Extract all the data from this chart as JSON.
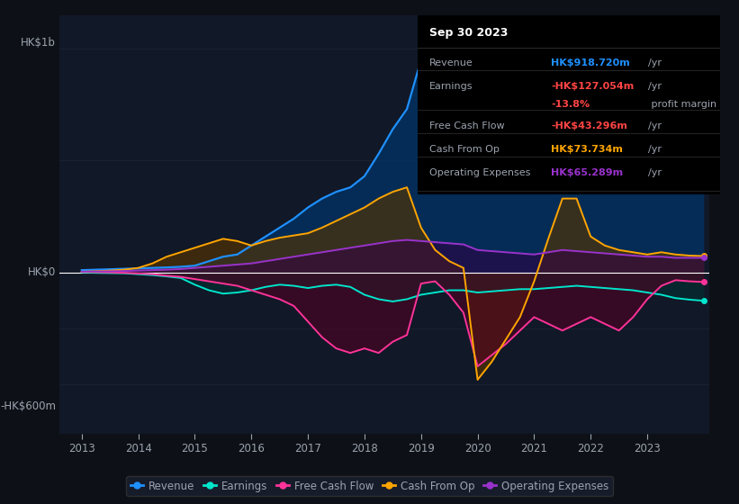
{
  "background_color": "#0d1117",
  "plot_bg_color": "#111827",
  "grid_color": "#1e2535",
  "text_color": "#9ca3af",
  "ylabel_top": "HK$1b",
  "ylabel_bottom": "-HK$600m",
  "ylabel_zero": "HK$0",
  "xlim": [
    2012.6,
    2024.1
  ],
  "ylim": [
    -720,
    1150
  ],
  "xticks": [
    2013,
    2014,
    2015,
    2016,
    2017,
    2018,
    2019,
    2020,
    2021,
    2022,
    2023
  ],
  "years": [
    2013.0,
    2013.25,
    2013.5,
    2013.75,
    2014.0,
    2014.25,
    2014.5,
    2014.75,
    2015.0,
    2015.25,
    2015.5,
    2015.75,
    2016.0,
    2016.25,
    2016.5,
    2016.75,
    2017.0,
    2017.25,
    2017.5,
    2017.75,
    2018.0,
    2018.25,
    2018.5,
    2018.75,
    2019.0,
    2019.25,
    2019.5,
    2019.75,
    2020.0,
    2020.25,
    2020.5,
    2020.75,
    2021.0,
    2021.25,
    2021.5,
    2021.75,
    2022.0,
    2022.25,
    2022.5,
    2022.75,
    2023.0,
    2023.25,
    2023.5,
    2023.75,
    2024.0
  ],
  "revenue": [
    10,
    12,
    14,
    16,
    18,
    20,
    22,
    25,
    30,
    50,
    70,
    80,
    120,
    160,
    200,
    240,
    290,
    330,
    360,
    380,
    430,
    530,
    640,
    730,
    950,
    780,
    600,
    490,
    490,
    480,
    500,
    510,
    560,
    570,
    620,
    600,
    510,
    480,
    460,
    490,
    530,
    720,
    830,
    880,
    919
  ],
  "earnings": [
    0,
    -2,
    -3,
    -4,
    -8,
    -12,
    -18,
    -25,
    -55,
    -80,
    -95,
    -90,
    -80,
    -65,
    -55,
    -60,
    -70,
    -60,
    -55,
    -65,
    -100,
    -120,
    -130,
    -120,
    -100,
    -90,
    -80,
    -80,
    -90,
    -85,
    -80,
    -75,
    -75,
    -70,
    -65,
    -60,
    -65,
    -70,
    -75,
    -80,
    -90,
    -100,
    -115,
    -122,
    -127
  ],
  "free_cash_flow": [
    2,
    1,
    0,
    -2,
    -5,
    -8,
    -15,
    -20,
    -30,
    -40,
    -50,
    -60,
    -80,
    -100,
    -120,
    -150,
    -220,
    -290,
    -340,
    -360,
    -340,
    -360,
    -310,
    -280,
    -50,
    -40,
    -100,
    -180,
    -420,
    -370,
    -320,
    -260,
    -200,
    -230,
    -260,
    -230,
    -200,
    -230,
    -260,
    -200,
    -120,
    -60,
    -35,
    -40,
    -43
  ],
  "cash_from_op": [
    3,
    5,
    8,
    12,
    20,
    40,
    70,
    90,
    110,
    130,
    150,
    140,
    120,
    140,
    155,
    165,
    175,
    200,
    230,
    260,
    290,
    330,
    360,
    380,
    200,
    100,
    50,
    20,
    -480,
    -400,
    -300,
    -200,
    -40,
    150,
    330,
    330,
    160,
    120,
    100,
    90,
    80,
    90,
    80,
    75,
    73
  ],
  "operating_expenses": [
    3,
    4,
    5,
    6,
    8,
    10,
    12,
    15,
    20,
    25,
    30,
    35,
    40,
    50,
    60,
    70,
    80,
    90,
    100,
    110,
    120,
    130,
    140,
    145,
    140,
    135,
    130,
    125,
    100,
    95,
    90,
    85,
    80,
    90,
    100,
    95,
    90,
    85,
    80,
    75,
    70,
    70,
    65,
    65,
    65
  ],
  "revenue_color": "#1e90ff",
  "earnings_color": "#00e5cc",
  "free_cash_flow_color": "#ff3399",
  "cash_from_op_color": "#ffa500",
  "operating_expenses_color": "#9932cc",
  "revenue_fill": "#003366",
  "earnings_fill": "#003333",
  "free_cash_flow_fill": "#550022",
  "cash_from_op_fill": "#553300",
  "operating_expenses_fill": "#330044",
  "info_box": {
    "title": "Sep 30 2023",
    "title_color": "#ffffff",
    "bg_color": "#000000",
    "border_color": "#333333",
    "label_color": "#9ca3af",
    "value_color_default": "#ffffff",
    "rows": [
      {
        "label": "Revenue",
        "value": "HK$918.720m",
        "unit": "/yr",
        "value_color": "#1e90ff"
      },
      {
        "label": "Earnings",
        "value": "-HK$127.054m",
        "unit": "/yr",
        "value_color": "#ff4444"
      },
      {
        "label": "",
        "value": "-13.8%",
        "unit": " profit margin",
        "value_color": "#ff4444",
        "unit_color": "#9ca3af"
      },
      {
        "label": "Free Cash Flow",
        "value": "-HK$43.296m",
        "unit": "/yr",
        "value_color": "#ff4444"
      },
      {
        "label": "Cash From Op",
        "value": "HK$73.734m",
        "unit": "/yr",
        "value_color": "#ffa500"
      },
      {
        "label": "Operating Expenses",
        "value": "HK$65.289m",
        "unit": "/yr",
        "value_color": "#9932cc"
      }
    ]
  },
  "legend_items": [
    {
      "label": "Revenue",
      "color": "#1e90ff"
    },
    {
      "label": "Earnings",
      "color": "#00e5cc"
    },
    {
      "label": "Free Cash Flow",
      "color": "#ff3399"
    },
    {
      "label": "Cash From Op",
      "color": "#ffa500"
    },
    {
      "label": "Operating Expenses",
      "color": "#9932cc"
    }
  ]
}
